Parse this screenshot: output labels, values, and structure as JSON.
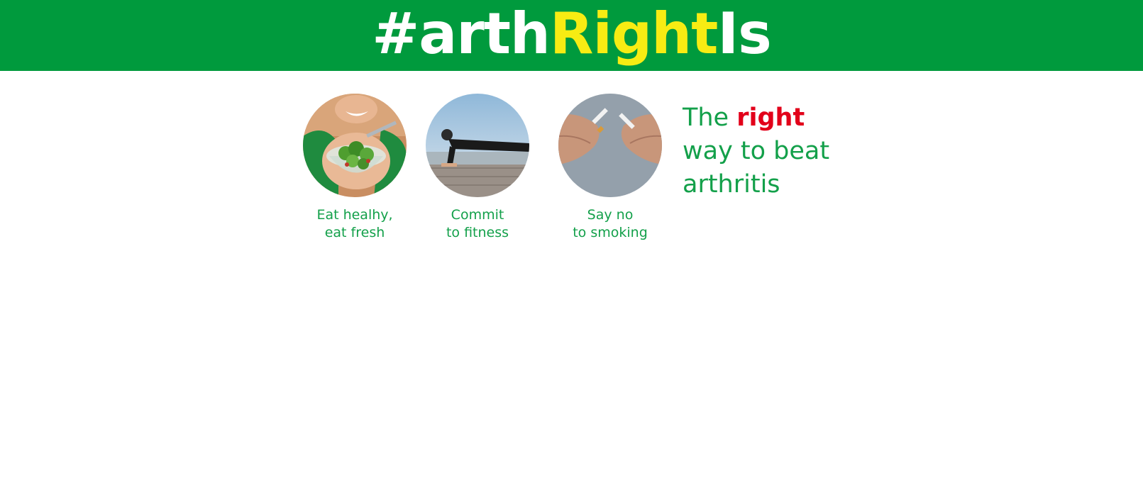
{
  "banner": {
    "hashtag_part1": "#arth",
    "hashtag_part2": "Right",
    "hashtag_part3": "Is",
    "background_color": "#009a3d",
    "highlight_color": "#f7ec13"
  },
  "tips": [
    {
      "icon": "salad-photo",
      "line1": "Eat healhy,",
      "line2": "eat fresh"
    },
    {
      "icon": "fitness-photo",
      "line1": "Commit",
      "line2": "to fitness"
    },
    {
      "icon": "broken-cigarette-photo",
      "line1": "Say no",
      "line2": "to smoking"
    }
  ],
  "slogan": {
    "word1": "The",
    "word_highlight": "right",
    "line2": "way to beat",
    "line3": "arthritis",
    "text_color": "#13a04a",
    "highlight_color": "#e2001a"
  }
}
